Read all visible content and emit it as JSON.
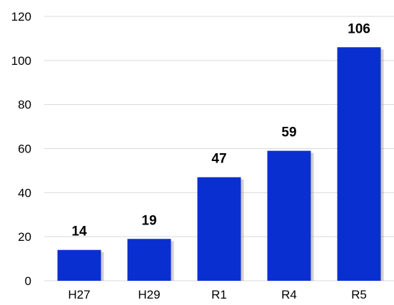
{
  "chart_data": {
    "type": "bar",
    "title": "",
    "xlabel": "",
    "ylabel": "",
    "categories": [
      "H27",
      "H29",
      "R1",
      "R4",
      "R5"
    ],
    "values": [
      14,
      19,
      47,
      59,
      106
    ],
    "data_labels": [
      "14",
      "19",
      "47",
      "59",
      "106"
    ],
    "y_ticks": [
      "0",
      "20",
      "40",
      "60",
      "80",
      "100",
      "120"
    ],
    "ylim": [
      0,
      120
    ],
    "grid": true,
    "legend": "none",
    "bar_color": "#0a2fd0",
    "bar_shadow_color": "#9a9a9a",
    "grid_color": "#d9d9d9"
  }
}
